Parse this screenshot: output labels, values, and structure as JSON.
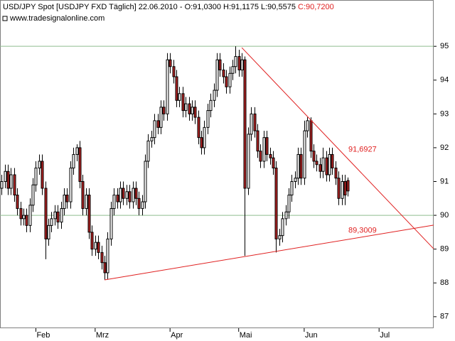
{
  "chart_data": {
    "type": "candlestick",
    "title": "USD/JPY Spot [USDJPY FXD  Täglich] 22.06.2010 - O:91,0300 H:91,1175 L:90,5575",
    "title_close": "C:90,7200",
    "subtitle": "www.tradesignalonline.com",
    "up_color": "#ffffff",
    "down_color": "#b22222",
    "outline_color": "#000000",
    "open": [
      90.8,
      91.0,
      91.3,
      90.8,
      91.2,
      90.6,
      90.2,
      89.9,
      90.0,
      89.7,
      90.3,
      90.9,
      91.4,
      91.6,
      90.8,
      89.3,
      89.7,
      89.9,
      90.1,
      89.8,
      90.2,
      90.6,
      90.4,
      91.4,
      91.8,
      92.0,
      91.0,
      90.2,
      90.6,
      89.5,
      89.0,
      89.2,
      88.9,
      88.6,
      88.3,
      89.3,
      90.2,
      90.6,
      90.4,
      90.8,
      90.5,
      90.7,
      90.4,
      90.8,
      90.5,
      90.2,
      90.4,
      91.6,
      92.2,
      92.3,
      92.8,
      92.6,
      93.2,
      93.0,
      94.6,
      94.4,
      94.1,
      93.4,
      93.6,
      93.1,
      93.3,
      93.0,
      93.2,
      92.9,
      92.3,
      92.0,
      92.6,
      93.1,
      93.4,
      93.7,
      94.6,
      94.3,
      94.1,
      93.8,
      94.2,
      94.4,
      94.7,
      94.3,
      94.6,
      90.8,
      92.4,
      93.0,
      92.5,
      91.9,
      91.6,
      92.3,
      91.8,
      91.7,
      91.4,
      89.3,
      89.4,
      89.9,
      90.1,
      90.6,
      91.0,
      91.1,
      91.8,
      91.1,
      92.5,
      92.8,
      91.9,
      91.6,
      91.5,
      91.3,
      91.7,
      91.2,
      91.8,
      91.4,
      91.1,
      90.5,
      91.0,
      91.03
    ],
    "high": [
      91.2,
      91.5,
      91.5,
      91.4,
      91.4,
      90.8,
      90.4,
      90.2,
      90.2,
      90.5,
      91.1,
      91.6,
      91.8,
      91.8,
      91.0,
      89.9,
      90.1,
      90.3,
      90.3,
      90.4,
      90.8,
      90.8,
      91.6,
      92.0,
      92.1,
      92.2,
      91.2,
      90.8,
      90.8,
      89.7,
      89.4,
      89.4,
      89.1,
      88.8,
      89.5,
      90.4,
      90.8,
      90.8,
      91.0,
      91.0,
      90.9,
      90.9,
      91.0,
      91.0,
      90.7,
      90.6,
      91.8,
      92.4,
      92.5,
      93.0,
      93.0,
      93.4,
      93.4,
      94.8,
      94.8,
      94.6,
      94.3,
      93.8,
      93.8,
      93.5,
      93.5,
      93.4,
      93.4,
      93.1,
      92.5,
      92.8,
      93.3,
      93.6,
      93.9,
      94.8,
      94.8,
      94.5,
      94.3,
      94.4,
      94.6,
      95.0,
      94.9,
      94.8,
      94.7,
      92.6,
      93.2,
      93.2,
      92.7,
      92.1,
      92.5,
      92.5,
      92.0,
      91.9,
      91.6,
      89.6,
      90.1,
      90.3,
      90.8,
      91.2,
      91.3,
      92.0,
      92.0,
      92.8,
      92.9,
      92.9,
      92.1,
      91.8,
      91.7,
      92.0,
      91.9,
      92.0,
      92.0,
      91.6,
      91.3,
      91.2,
      91.2,
      91.1175
    ],
    "low": [
      90.6,
      90.8,
      90.6,
      90.6,
      90.4,
      90.0,
      89.7,
      89.7,
      89.5,
      89.5,
      90.1,
      90.7,
      91.2,
      90.6,
      88.7,
      89.1,
      89.5,
      89.7,
      89.6,
      89.6,
      90.0,
      90.2,
      90.2,
      91.2,
      91.6,
      90.8,
      90.0,
      90.0,
      89.3,
      88.8,
      88.8,
      88.7,
      88.4,
      88.1,
      88.1,
      89.1,
      90.0,
      90.2,
      90.2,
      90.3,
      90.3,
      90.2,
      90.2,
      90.3,
      90.0,
      90.0,
      90.2,
      91.4,
      92.0,
      92.1,
      92.4,
      92.4,
      92.8,
      92.8,
      94.2,
      93.9,
      93.2,
      93.2,
      92.9,
      92.9,
      92.8,
      92.8,
      92.7,
      92.1,
      91.8,
      91.8,
      92.4,
      92.9,
      93.2,
      93.5,
      94.1,
      93.9,
      93.6,
      93.6,
      94.0,
      94.2,
      94.1,
      94.1,
      88.8,
      90.6,
      92.2,
      92.3,
      91.7,
      91.4,
      91.4,
      91.6,
      91.5,
      91.2,
      88.9,
      89.1,
      89.2,
      89.7,
      89.9,
      90.4,
      90.8,
      90.9,
      90.9,
      90.9,
      92.3,
      91.7,
      91.4,
      91.3,
      91.1,
      91.1,
      91.0,
      91.0,
      91.2,
      90.9,
      90.3,
      90.3,
      90.3,
      90.5575
    ],
    "close": [
      91.0,
      91.3,
      90.8,
      91.2,
      90.6,
      90.2,
      89.9,
      90.0,
      89.7,
      90.3,
      90.9,
      91.4,
      91.6,
      90.8,
      89.3,
      89.7,
      89.9,
      90.1,
      89.8,
      90.2,
      90.6,
      90.4,
      91.4,
      91.8,
      92.0,
      91.0,
      90.2,
      90.6,
      89.5,
      89.0,
      89.2,
      88.9,
      88.6,
      88.3,
      89.3,
      90.2,
      90.6,
      90.4,
      90.8,
      90.5,
      90.7,
      90.4,
      90.8,
      90.5,
      90.2,
      90.4,
      91.6,
      92.2,
      92.3,
      92.8,
      92.6,
      93.2,
      93.0,
      94.6,
      94.4,
      94.1,
      93.4,
      93.6,
      93.1,
      93.3,
      93.0,
      93.2,
      92.9,
      92.3,
      92.0,
      92.6,
      93.1,
      93.4,
      93.7,
      94.6,
      94.3,
      94.1,
      93.8,
      94.2,
      94.4,
      94.7,
      94.3,
      94.6,
      90.8,
      92.4,
      93.0,
      92.5,
      91.9,
      91.6,
      92.3,
      91.8,
      91.7,
      91.4,
      89.3,
      89.4,
      89.9,
      90.1,
      90.6,
      91.0,
      91.1,
      91.8,
      91.1,
      92.5,
      92.8,
      91.9,
      91.6,
      91.5,
      91.3,
      91.7,
      91.2,
      91.8,
      91.4,
      91.1,
      90.5,
      91.0,
      90.6,
      90.72
    ],
    "xlim": [
      -0.5,
      138.5
    ],
    "xticks": [
      {
        "value": 11,
        "label": "Feb"
      },
      {
        "value": 30,
        "label": "Mrz"
      },
      {
        "value": 54,
        "label": "Apr"
      },
      {
        "value": 76,
        "label": "Mai"
      },
      {
        "value": 97,
        "label": "Jun"
      },
      {
        "value": 121,
        "label": "Jul"
      }
    ],
    "ylim": [
      86.66,
      96.37
    ],
    "yticks": [
      87,
      88,
      89,
      90,
      91,
      92,
      93,
      94,
      95
    ],
    "hlines": [
      95,
      90
    ],
    "hline_color": "#8fbc8f",
    "trendlines": [
      {
        "color": "#e02020",
        "points": [
          [
            77,
            94.96
          ],
          [
            138.5,
            89.01
          ]
        ],
        "label": {
          "value": 91.6927,
          "label": "91,6927"
        }
      },
      {
        "color": "#e02020",
        "points": [
          [
            33,
            88.09
          ],
          [
            138.5,
            89.71
          ]
        ],
        "label": {
          "value": 89.3009,
          "label": "89,3009"
        }
      }
    ]
  }
}
